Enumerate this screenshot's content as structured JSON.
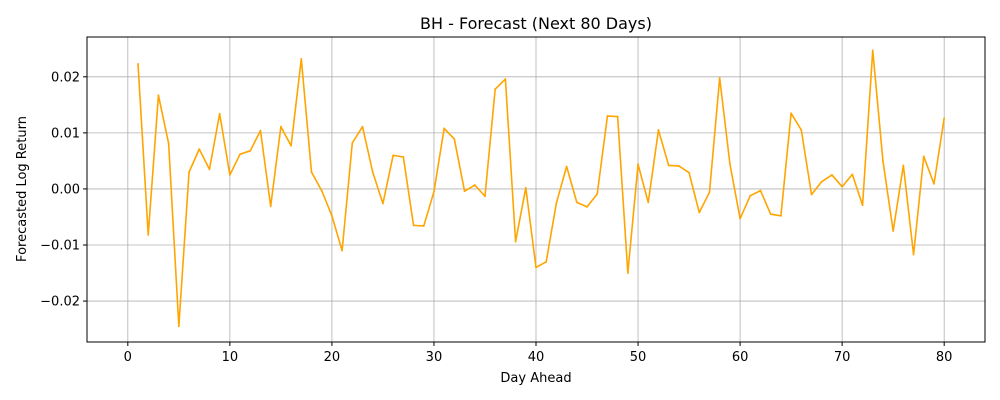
{
  "chart_data": {
    "type": "line",
    "title": "BH - Forecast (Next 80 Days)",
    "xlabel": "Day Ahead",
    "ylabel": "Forecasted Log Return",
    "xlim": [
      -4,
      84
    ],
    "ylim": [
      -0.0273,
      0.0271
    ],
    "x_ticks": [
      0,
      10,
      20,
      30,
      40,
      50,
      60,
      70,
      80
    ],
    "x_tick_labels": [
      "0",
      "10",
      "20",
      "30",
      "40",
      "50",
      "60",
      "70",
      "80"
    ],
    "y_ticks": [
      -0.02,
      -0.01,
      0.0,
      0.01,
      0.02
    ],
    "y_tick_labels": [
      "−0.02",
      "−0.01",
      "0.00",
      "0.01",
      "0.02"
    ],
    "grid": true,
    "series": [
      {
        "color": "#ffa500",
        "x": [
          1,
          2,
          3,
          4,
          5,
          6,
          7,
          8,
          9,
          10,
          11,
          12,
          13,
          14,
          15,
          16,
          17,
          18,
          19,
          20,
          21,
          22,
          23,
          24,
          25,
          26,
          27,
          28,
          29,
          30,
          31,
          32,
          33,
          34,
          35,
          36,
          37,
          38,
          39,
          40,
          41,
          42,
          43,
          44,
          45,
          46,
          47,
          48,
          49,
          50,
          51,
          52,
          53,
          54,
          55,
          56,
          57,
          58,
          59,
          60,
          61,
          62,
          63,
          64,
          65,
          66,
          67,
          68,
          69,
          70,
          71,
          72,
          73,
          74,
          75,
          76,
          77,
          78,
          79,
          80
        ],
        "values": [
          0.0223,
          -0.0082,
          0.0167,
          0.0081,
          -0.0245,
          0.003,
          0.0071,
          0.0035,
          0.0134,
          0.0025,
          0.0062,
          0.0068,
          0.0104,
          -0.0031,
          0.0111,
          0.0077,
          0.0232,
          0.003,
          -0.0003,
          -0.0048,
          -0.011,
          0.0082,
          0.0111,
          0.003,
          -0.0026,
          0.006,
          0.0057,
          -0.0065,
          -0.0066,
          -0.0005,
          0.0108,
          0.0089,
          -0.0004,
          0.0007,
          -0.0013,
          0.0178,
          0.0196,
          -0.0094,
          0.0002,
          -0.014,
          -0.013,
          -0.0025,
          0.004,
          -0.0024,
          -0.0032,
          -0.0009,
          0.013,
          0.0129,
          -0.015,
          0.0044,
          -0.0024,
          0.0105,
          0.0042,
          0.0041,
          0.0029,
          -0.0042,
          -0.0006,
          0.0198,
          0.0045,
          -0.0053,
          -0.0012,
          -0.0003,
          -0.0045,
          -0.0048,
          0.0135,
          0.0105,
          -0.001,
          0.0013,
          0.0025,
          0.0004,
          0.0026,
          -0.0029,
          0.0247,
          0.005,
          -0.0075,
          0.0042,
          -0.0117,
          0.0058,
          0.0009,
          0.0126
        ]
      }
    ]
  }
}
